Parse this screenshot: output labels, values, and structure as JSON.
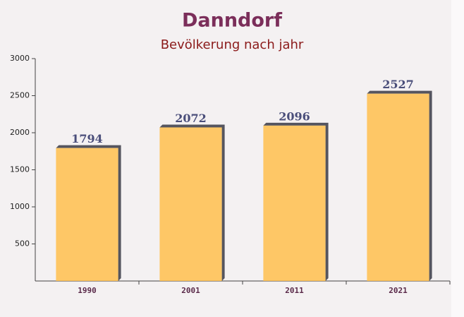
{
  "chart_data": {
    "type": "bar",
    "title": "Danndorf",
    "subtitle": "Bevölkerung nach jahr",
    "categories": [
      "1990",
      "2001",
      "2011",
      "2021"
    ],
    "values": [
      1794,
      2072,
      2096,
      2527
    ],
    "color": "#ffc04d",
    "ylim": [
      0,
      3000
    ],
    "yticks": [
      500,
      1000,
      1500,
      2000,
      2500,
      3000
    ]
  }
}
